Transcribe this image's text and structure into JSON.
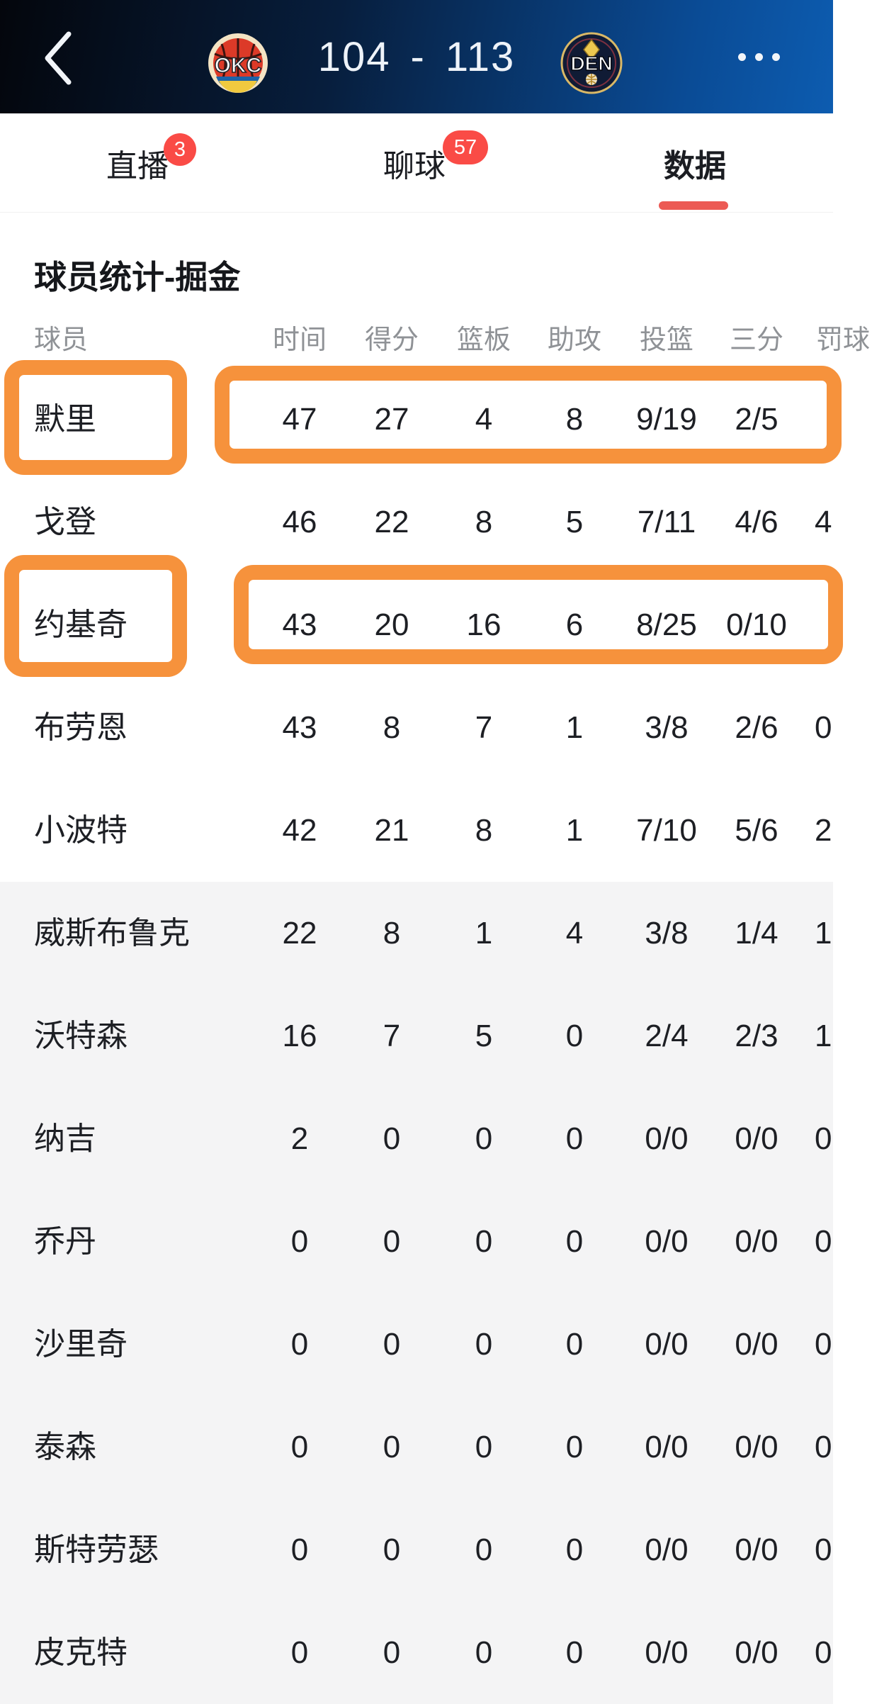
{
  "header": {
    "back_icon": "chevron-left",
    "home_team": "OKC",
    "away_team": "DEN",
    "score_home": "104",
    "score_separator": "-",
    "score_away": "113",
    "more_icon": "ellipsis"
  },
  "tabs": [
    {
      "label": "直播",
      "badge": "3",
      "active": false
    },
    {
      "label": "聊球",
      "badge": "57",
      "active": false
    },
    {
      "label": "数据",
      "badge": "",
      "active": true
    }
  ],
  "section": {
    "title": "球员统计-掘金"
  },
  "table": {
    "columns": [
      "球员",
      "时间",
      "得分",
      "篮板",
      "助攻",
      "投篮",
      "三分",
      "罚球"
    ],
    "rows": [
      {
        "name": "默里",
        "values": [
          "47",
          "27",
          "4",
          "8",
          "9/19",
          "2/5",
          ""
        ],
        "highlighted": true
      },
      {
        "name": "戈登",
        "values": [
          "46",
          "22",
          "8",
          "5",
          "7/11",
          "4/6",
          "4"
        ],
        "highlighted": false
      },
      {
        "name": "约基奇",
        "values": [
          "43",
          "20",
          "16",
          "6",
          "8/25",
          "0/10",
          ""
        ],
        "highlighted": true
      },
      {
        "name": "布劳恩",
        "values": [
          "43",
          "8",
          "7",
          "1",
          "3/8",
          "2/6",
          "0"
        ],
        "highlighted": false
      },
      {
        "name": "小波特",
        "values": [
          "42",
          "21",
          "8",
          "1",
          "7/10",
          "5/6",
          "2"
        ],
        "highlighted": false
      },
      {
        "name": "威斯布鲁克",
        "values": [
          "22",
          "8",
          "1",
          "4",
          "3/8",
          "1/4",
          "1"
        ],
        "highlighted": false
      },
      {
        "name": "沃特森",
        "values": [
          "16",
          "7",
          "5",
          "0",
          "2/4",
          "2/3",
          "1"
        ],
        "highlighted": false
      },
      {
        "name": "纳吉",
        "values": [
          "2",
          "0",
          "0",
          "0",
          "0/0",
          "0/0",
          "0"
        ],
        "highlighted": false
      },
      {
        "name": "乔丹",
        "values": [
          "0",
          "0",
          "0",
          "0",
          "0/0",
          "0/0",
          "0"
        ],
        "highlighted": false
      },
      {
        "name": "沙里奇",
        "values": [
          "0",
          "0",
          "0",
          "0",
          "0/0",
          "0/0",
          "0"
        ],
        "highlighted": false
      },
      {
        "name": "泰森",
        "values": [
          "0",
          "0",
          "0",
          "0",
          "0/0",
          "0/0",
          "0"
        ],
        "highlighted": false
      },
      {
        "name": "斯特劳瑟",
        "values": [
          "0",
          "0",
          "0",
          "0",
          "0/0",
          "0/0",
          "0"
        ],
        "highlighted": false
      },
      {
        "name": "皮克特",
        "values": [
          "0",
          "0",
          "0",
          "0",
          "0/0",
          "0/0",
          "0"
        ],
        "highlighted": false
      }
    ],
    "gray_section_start_row": 5
  },
  "colors": {
    "highlight_orange": "#f6923c",
    "badge_red": "#fa4b46",
    "active_tab_underline": "#ec5a54",
    "header_gradient_left": "#04060c",
    "header_gradient_right": "#0d5cb0",
    "gray_row_bg": "#f4f4f5",
    "column_header_text": "#8f9296",
    "body_text": "#1d1f24"
  }
}
